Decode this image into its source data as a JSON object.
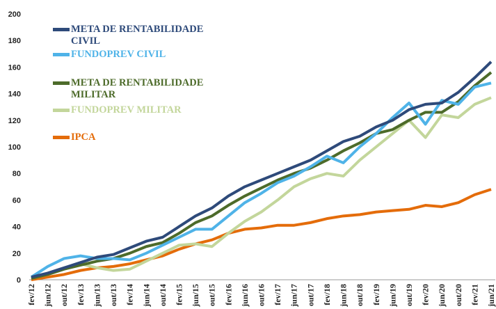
{
  "chart_data": {
    "type": "line",
    "categories": [
      "fev/12",
      "jun/12",
      "out/12",
      "fev/13",
      "jun/13",
      "out/13",
      "fev/14",
      "jun/14",
      "out/14",
      "fev/15",
      "jun/15",
      "out/15",
      "fev/16",
      "jun/16",
      "out/16",
      "fev/17",
      "jun/17",
      "out/17",
      "fev/18",
      "jun/18",
      "out/18",
      "fev/19",
      "jun/19",
      "out/19",
      "fev/20",
      "jun/20",
      "out/20",
      "fev/21",
      "jun/21"
    ],
    "series": [
      {
        "name": "META DE RENTABILIDADE CIVIL",
        "color": "#2e4a7a",
        "values": [
          2,
          5,
          9,
          13,
          17,
          19,
          24,
          29,
          32,
          40,
          48,
          54,
          63,
          70,
          75,
          80,
          85,
          90,
          97,
          104,
          108,
          115,
          120,
          128,
          132,
          133,
          141,
          152,
          164
        ]
      },
      {
        "name": "FUNDOPREV CIVIL",
        "color": "#4fb3e8",
        "values": [
          2,
          10,
          16,
          18,
          16,
          16,
          15,
          20,
          26,
          32,
          38,
          38,
          48,
          58,
          65,
          73,
          78,
          85,
          93,
          88,
          100,
          110,
          122,
          133,
          117,
          135,
          132,
          145,
          148
        ]
      },
      {
        "name": "META DE RENTABILIDADE MILITAR",
        "color": "#4d6b2a",
        "values": [
          1,
          4,
          8,
          11,
          14,
          16,
          20,
          25,
          28,
          35,
          43,
          48,
          56,
          63,
          69,
          75,
          80,
          84,
          90,
          97,
          103,
          110,
          113,
          120,
          126,
          126,
          134,
          146,
          156
        ]
      },
      {
        "name": "FUNDOPREV MILITAR",
        "color": "#c3d69b",
        "values": [
          1,
          4,
          8,
          12,
          9,
          7,
          8,
          14,
          20,
          26,
          27,
          25,
          35,
          44,
          51,
          60,
          70,
          76,
          80,
          78,
          90,
          100,
          110,
          120,
          107,
          124,
          122,
          132,
          137
        ]
      },
      {
        "name": "IPCA",
        "color": "#e46c0a",
        "values": [
          0,
          2,
          4,
          7,
          9,
          10,
          12,
          15,
          18,
          23,
          27,
          30,
          35,
          38,
          39,
          41,
          41,
          43,
          46,
          48,
          49,
          51,
          52,
          53,
          56,
          55,
          58,
          64,
          68
        ]
      }
    ],
    "ylim": [
      0,
      200
    ],
    "yticks": [
      0,
      20,
      40,
      60,
      80,
      100,
      120,
      140,
      160,
      180,
      200
    ],
    "grid": false
  }
}
